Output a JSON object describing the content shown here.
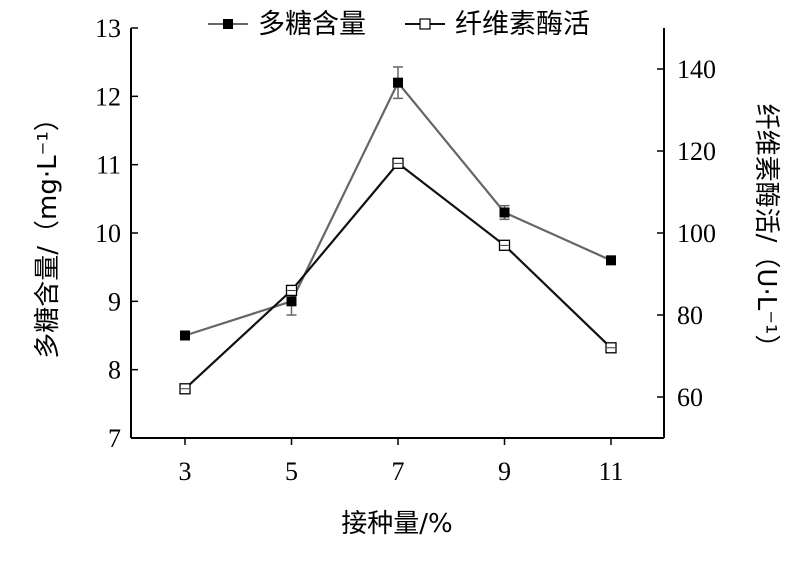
{
  "chart_data": {
    "type": "line",
    "title": "",
    "xlabel": "接种量/%",
    "x": [
      3,
      5,
      7,
      9,
      11
    ],
    "y_left": {
      "label": "多糖含量/（mg·L⁻¹）",
      "ylim": [
        7,
        13
      ],
      "ticks": [
        7,
        8,
        9,
        10,
        11,
        12,
        13
      ]
    },
    "y_right": {
      "label": "纤维素酶活/（U·L⁻¹）",
      "ylim": [
        50,
        150
      ],
      "ticks": [
        60,
        80,
        100,
        120,
        140
      ]
    },
    "legend": "top",
    "grid": false,
    "series": [
      {
        "name": "多糖含量",
        "axis": "left",
        "marker": "filled-square",
        "color": "#666666",
        "values": [
          8.5,
          9.0,
          12.2,
          10.3,
          9.6
        ],
        "errors": [
          0.0,
          0.2,
          0.23,
          0.1,
          0.0
        ]
      },
      {
        "name": "纤维素酶活",
        "axis": "right",
        "marker": "hollow-square",
        "color": "#111111",
        "values": [
          62,
          86,
          117,
          97,
          72
        ],
        "errors": [
          0,
          0,
          0,
          0,
          0
        ]
      }
    ]
  }
}
